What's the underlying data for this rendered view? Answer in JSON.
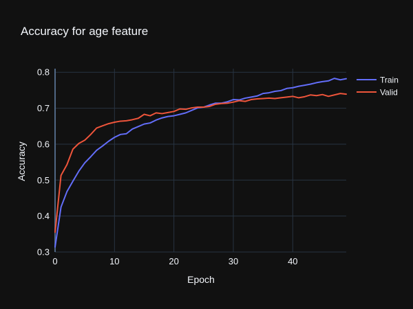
{
  "chart_data": {
    "type": "line",
    "title": "Accuracy for age feature",
    "xlabel": "Epoch",
    "ylabel": "Accuracy",
    "xlim": [
      0,
      49
    ],
    "ylim": [
      0.3,
      0.81
    ],
    "x_ticks": [
      0,
      10,
      20,
      30,
      40
    ],
    "y_ticks": [
      0.3,
      0.4,
      0.5,
      0.6,
      0.7,
      0.8
    ],
    "x_tick_labels": [
      "0",
      "10",
      "20",
      "30",
      "40"
    ],
    "y_tick_labels": [
      "0.3",
      "0.4",
      "0.5",
      "0.6",
      "0.7",
      "0.8"
    ],
    "grid": true,
    "legend_position": "top-right",
    "x": [
      0,
      1,
      2,
      3,
      4,
      5,
      6,
      7,
      8,
      9,
      10,
      11,
      12,
      13,
      14,
      15,
      16,
      17,
      18,
      19,
      20,
      21,
      22,
      23,
      24,
      25,
      26,
      27,
      28,
      29,
      30,
      31,
      32,
      33,
      34,
      35,
      36,
      37,
      38,
      39,
      40,
      41,
      42,
      43,
      44,
      45,
      46,
      47,
      48,
      49
    ],
    "series": [
      {
        "name": "Train",
        "color": "#636efa",
        "values": [
          0.314,
          0.425,
          0.468,
          0.497,
          0.525,
          0.548,
          0.565,
          0.583,
          0.595,
          0.608,
          0.619,
          0.627,
          0.629,
          0.642,
          0.649,
          0.656,
          0.659,
          0.667,
          0.673,
          0.677,
          0.679,
          0.683,
          0.687,
          0.694,
          0.701,
          0.703,
          0.709,
          0.714,
          0.714,
          0.718,
          0.724,
          0.723,
          0.728,
          0.731,
          0.734,
          0.741,
          0.743,
          0.747,
          0.749,
          0.755,
          0.757,
          0.761,
          0.764,
          0.767,
          0.771,
          0.774,
          0.776,
          0.783,
          0.779,
          0.782
        ]
      },
      {
        "name": "Valid",
        "color": "#ef553b",
        "values": [
          0.355,
          0.513,
          0.543,
          0.586,
          0.602,
          0.611,
          0.627,
          0.645,
          0.651,
          0.657,
          0.661,
          0.664,
          0.665,
          0.668,
          0.672,
          0.683,
          0.679,
          0.687,
          0.685,
          0.688,
          0.691,
          0.698,
          0.697,
          0.701,
          0.703,
          0.703,
          0.705,
          0.711,
          0.713,
          0.714,
          0.717,
          0.721,
          0.719,
          0.724,
          0.726,
          0.727,
          0.728,
          0.727,
          0.729,
          0.731,
          0.733,
          0.729,
          0.732,
          0.737,
          0.735,
          0.738,
          0.733,
          0.737,
          0.741,
          0.739
        ]
      }
    ]
  },
  "colors": {
    "background": "#111111",
    "grid": "#283442",
    "zero_line": "#506784",
    "text": "#f2f5fa"
  }
}
